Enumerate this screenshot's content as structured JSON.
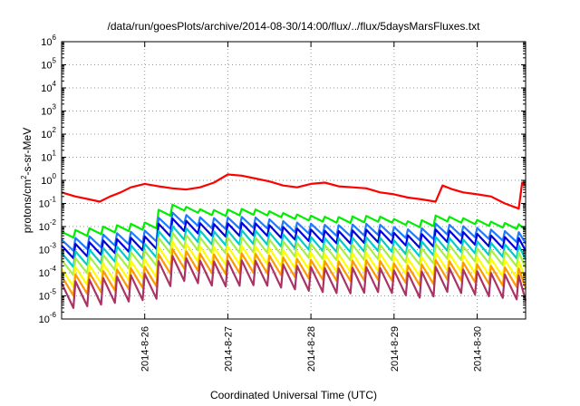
{
  "chart_data": {
    "type": "line",
    "title": "/data/run/goesPlots/archive/2014-08-30/14:00/flux/../flux/5daysMarsFluxes.txt",
    "xlabel": "Coordinated Universal Time (UTC)",
    "ylabel": "protons/cm2-s-sr-MeV",
    "ylabel_base": "protons/cm",
    "ylabel_sup": "2",
    "ylabel_rest": "-s-sr-MeV",
    "yscale": "log",
    "ylim": [
      1e-06,
      1000000.0
    ],
    "xlim": [
      "2014-08-25 00:00",
      "2014-08-30 14:00"
    ],
    "grid": true,
    "x_ticks": [
      "2014-8-26",
      "2014-8-27",
      "2014-8-28",
      "2014-8-29",
      "2014-8-30"
    ],
    "y_ticks": [
      {
        "base": "10",
        "exp": "-6"
      },
      {
        "base": "10",
        "exp": "-5"
      },
      {
        "base": "10",
        "exp": "-4"
      },
      {
        "base": "10",
        "exp": "-3"
      },
      {
        "base": "10",
        "exp": "-2"
      },
      {
        "base": "10",
        "exp": "-1"
      },
      {
        "base": "10",
        "exp": "0"
      },
      {
        "base": "10",
        "exp": "1"
      },
      {
        "base": "10",
        "exp": "2"
      },
      {
        "base": "10",
        "exp": "3"
      },
      {
        "base": "10",
        "exp": "4"
      },
      {
        "base": "10",
        "exp": "5"
      },
      {
        "base": "10",
        "exp": "6"
      }
    ],
    "series": [
      {
        "color": "#ff0000",
        "x": [
          "2014-08-25 00:00",
          "2014-08-25 04:00",
          "2014-08-25 08:00",
          "2014-08-25 11:00",
          "2014-08-25 14:00",
          "2014-08-25 17:00",
          "2014-08-25 20:00",
          "2014-08-26 00:00",
          "2014-08-26 04:00",
          "2014-08-26 08:00",
          "2014-08-26 12:00",
          "2014-08-26 16:00",
          "2014-08-26 20:00",
          "2014-08-27 00:00",
          "2014-08-27 04:00",
          "2014-08-27 08:00",
          "2014-08-27 12:00",
          "2014-08-27 16:00",
          "2014-08-27 20:00",
          "2014-08-28 00:00",
          "2014-08-28 04:00",
          "2014-08-28 08:00",
          "2014-08-28 12:00",
          "2014-08-28 16:00",
          "2014-08-28 20:00",
          "2014-08-29 00:00",
          "2014-08-29 04:00",
          "2014-08-29 08:00",
          "2014-08-29 12:00",
          "2014-08-29 14:00",
          "2014-08-29 17:00",
          "2014-08-29 20:00",
          "2014-08-30 00:00",
          "2014-08-30 04:00",
          "2014-08-30 08:00",
          "2014-08-30 12:00",
          "2014-08-30 13:00",
          "2014-08-30 14:00"
        ],
        "y": [
          0.3,
          0.2,
          0.15,
          0.12,
          0.2,
          0.3,
          0.5,
          0.7,
          0.55,
          0.45,
          0.4,
          0.5,
          0.8,
          1.8,
          1.6,
          1.2,
          0.9,
          0.6,
          0.5,
          0.7,
          0.8,
          0.55,
          0.5,
          0.45,
          0.3,
          0.25,
          0.18,
          0.15,
          0.12,
          0.6,
          0.4,
          0.3,
          0.25,
          0.2,
          0.1,
          0.06,
          0.8,
          0.6
        ]
      },
      {
        "color": "#00ee00",
        "decay_days": [
          0.6,
          0.5,
          0.5,
          0.55,
          0.6,
          0.55,
          0.5,
          0.5,
          0.55,
          0.5,
          0.4,
          0.3,
          0.5,
          0.45
        ],
        "x": [
          "2014-08-25 00:00",
          "2014-08-25 12:00",
          "2014-08-26 00:00",
          "2014-08-26 06:00",
          "2014-08-26 18:00",
          "2014-08-27 06:00",
          "2014-08-27 18:00",
          "2014-08-28 06:00",
          "2014-08-28 18:00",
          "2014-08-29 06:00",
          "2014-08-29 12:00",
          "2014-08-29 18:00",
          "2014-08-30 06:00",
          "2014-08-30 14:00"
        ],
        "y": [
          0.006,
          0.01,
          0.015,
          0.1,
          0.05,
          0.06,
          0.035,
          0.025,
          0.03,
          0.015,
          0.03,
          0.025,
          0.015,
          0.012
        ]
      },
      {
        "color": "#1e7bff",
        "x": [
          "2014-08-25 00:00",
          "2014-08-26 00:00",
          "2014-08-27 00:00",
          "2014-08-28 00:00",
          "2014-08-29 00:00",
          "2014-08-30 00:00",
          "2014-08-30 14:00"
        ],
        "y": [
          0.004,
          0.005,
          0.02,
          0.008,
          0.005,
          0.004,
          0.003
        ],
        "cycle_depth": 3
      }
    ]
  }
}
